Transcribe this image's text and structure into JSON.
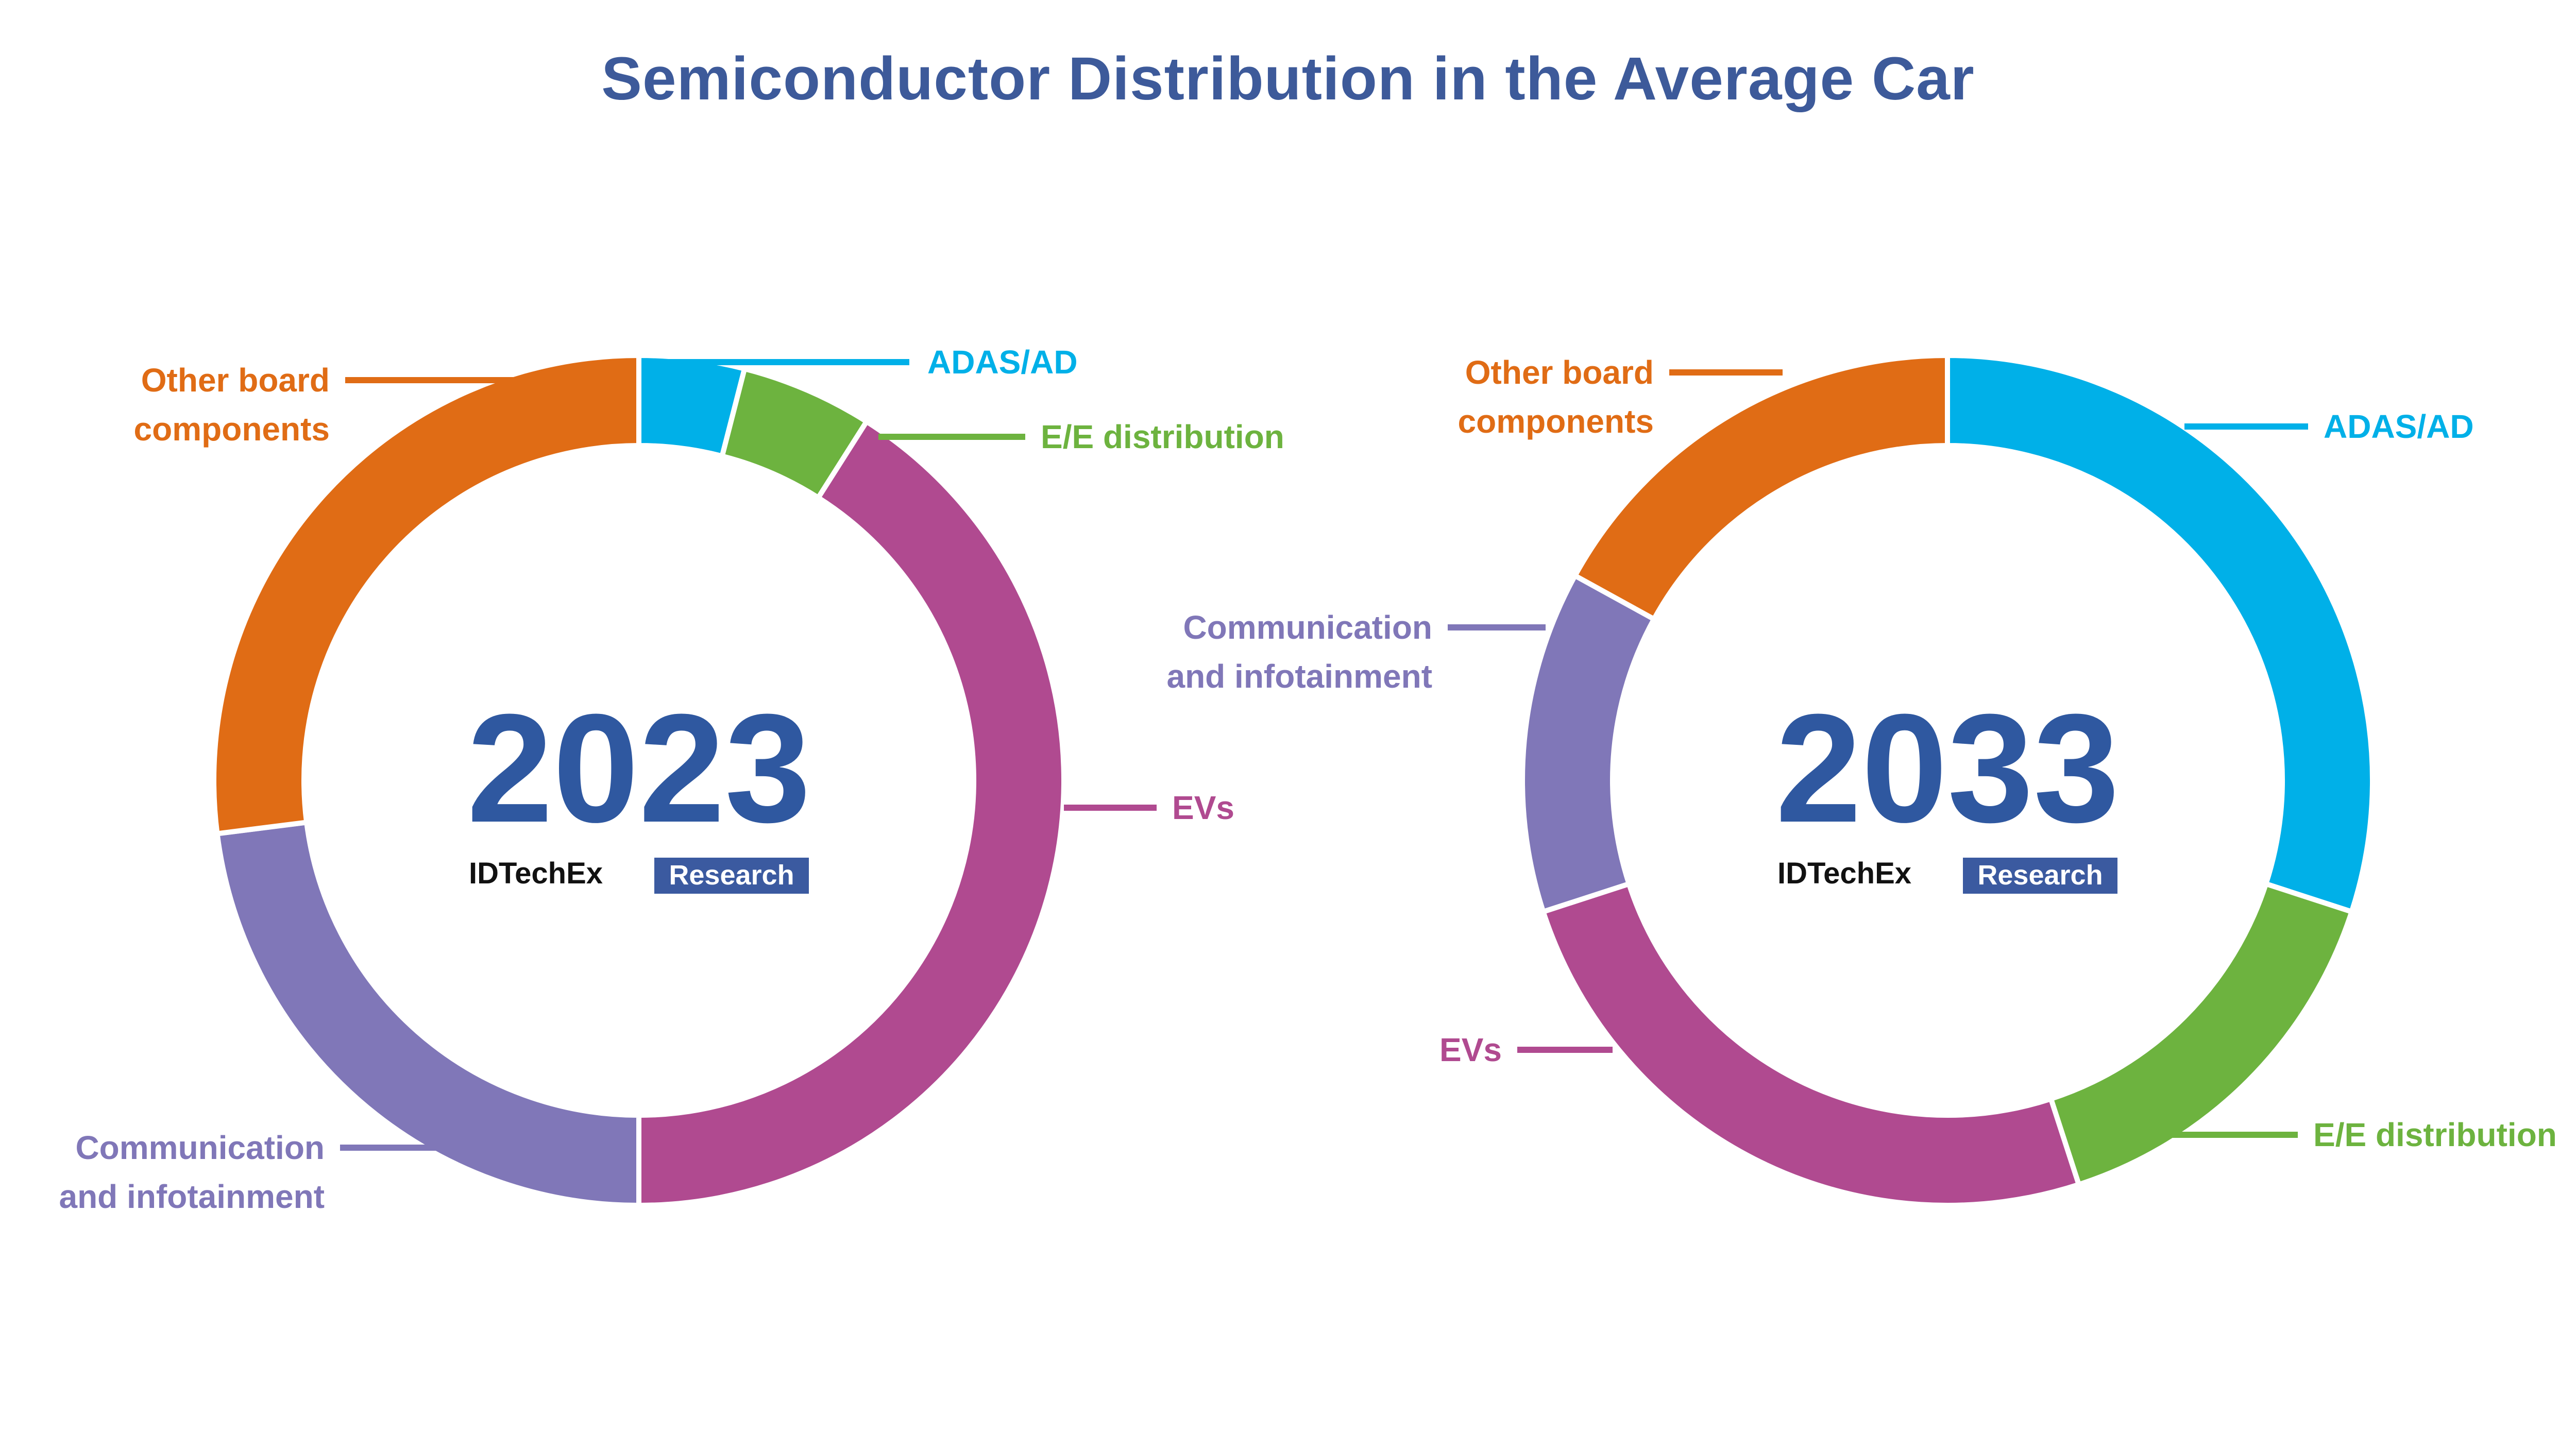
{
  "chart_data": [
    {
      "type": "pie",
      "title": "Semiconductor Distribution in the Average Car",
      "center_label": "2023",
      "unit": "%",
      "segments": [
        {
          "label": "ADAS/AD",
          "value": 4,
          "color": "#00b0e8"
        },
        {
          "label": "E/E distribution",
          "value": 5,
          "color": "#6db33f"
        },
        {
          "label": "EVs",
          "value": 41,
          "color": "#b04a90"
        },
        {
          "label": "Communication and infotainment",
          "value": 23,
          "color": "#8077b8"
        },
        {
          "label": "Other board components",
          "value": 27,
          "color": "#e06c15"
        }
      ],
      "brand": {
        "name": "IDTechEx",
        "tag": "Research"
      }
    },
    {
      "type": "pie",
      "center_label": "2033",
      "unit": "%",
      "segments": [
        {
          "label": "ADAS/AD",
          "value": 30,
          "color": "#00b0e8"
        },
        {
          "label": "E/E distribution",
          "value": 15,
          "color": "#6db33f"
        },
        {
          "label": "EVs",
          "value": 25,
          "color": "#b04a90"
        },
        {
          "label": "Communication and infotainment",
          "value": 13,
          "color": "#8077b8"
        },
        {
          "label": "Other board components",
          "value": 17,
          "color": "#e06c15"
        }
      ],
      "brand": {
        "name": "IDTechEx",
        "tag": "Research"
      }
    }
  ]
}
